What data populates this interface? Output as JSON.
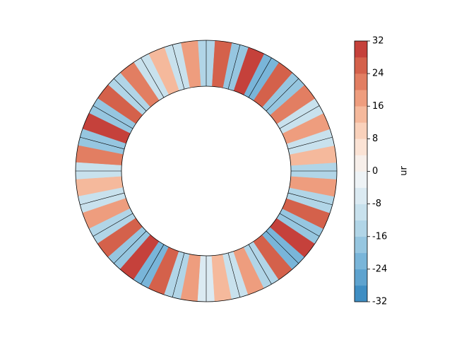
{
  "chart_data": {
    "type": "polar-contourf",
    "theta": [
      0,
      7.5,
      15,
      22.5,
      30,
      37.5,
      45,
      52.5,
      60,
      67.5,
      75,
      82.5,
      90,
      97.5,
      105,
      112.5,
      120,
      127.5,
      135,
      142.5,
      150,
      157.5,
      165,
      172.5,
      180,
      187.5,
      195,
      202.5,
      210,
      217.5,
      225,
      232.5,
      240,
      247.5,
      255,
      262.5,
      270,
      277.5,
      285,
      292.5,
      300,
      307.5,
      315,
      322.5,
      330,
      337.5,
      345,
      352.5
    ],
    "values": [
      -14,
      12,
      -10,
      16,
      -12,
      22,
      -18,
      26,
      -22,
      28,
      -20,
      24,
      -14,
      18,
      -10,
      14,
      -12,
      20,
      -16,
      26,
      -20,
      28,
      -18,
      22,
      -12,
      14,
      -10,
      16,
      -14,
      24,
      -20,
      28,
      -22,
      24,
      -14,
      16,
      -8,
      12,
      -10,
      18,
      -16,
      26,
      -22,
      30,
      -20,
      24,
      -16,
      18
    ],
    "clim": [
      -32,
      32
    ],
    "colors": [
      "#3f8ec3",
      "#5ea3cf",
      "#79b5d9",
      "#96c6e0",
      "#b1d5e7",
      "#c8e1ed",
      "#dbeaf2",
      "#eef3f6",
      "#f7efea",
      "#fbe3d5",
      "#f9d1bb",
      "#f5b99c",
      "#ee9d7e",
      "#e27e62",
      "#d4614b",
      "#c5413b"
    ],
    "colorbar_ticks": [
      -32,
      -24,
      -16,
      -8,
      0,
      8,
      16,
      24,
      32
    ],
    "colorbar_label": "ur"
  }
}
